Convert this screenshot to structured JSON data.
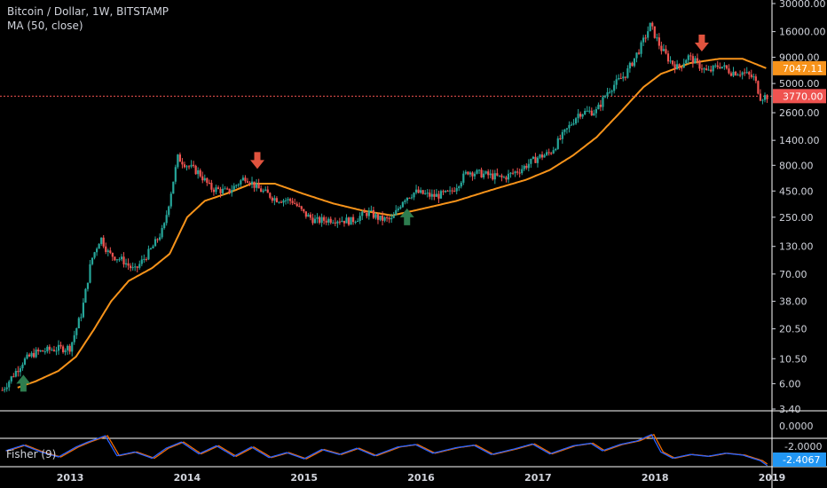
{
  "header": {
    "symbol": "Bitcoin / Dollar, 1W, BITSTAMP",
    "indicator": "MA (50, close)"
  },
  "fisher": {
    "label": "Fisher (9)",
    "value_label": "-2.4067",
    "zero_label": "0.0000",
    "partial_label": "-2.0000"
  },
  "colors": {
    "background": "#000000",
    "up": "#26a69a",
    "down": "#ef5350",
    "ma": "#f7931a",
    "ma_badge": "#f7931a",
    "price_badge": "#ef5350",
    "fisher_line1": "#2962ff",
    "fisher_line2": "#ef6c00",
    "fisher_badge": "#2196f3",
    "buy_arrow": "#2e7d4f",
    "sell_arrow": "#e0533e"
  },
  "chart_data": {
    "type": "candlestick",
    "y_scale": "log",
    "ylim": [
      3.4,
      30000
    ],
    "y_ticks": [
      "30000.00",
      "16000.00",
      "9000.00",
      "5000.00",
      "2600.00",
      "1400.00",
      "800.00",
      "450.00",
      "250.00",
      "130.00",
      "70.00",
      "38.00",
      "20.50",
      "10.50",
      "6.00",
      "3.40"
    ],
    "x_ticks": [
      "2013",
      "2014",
      "2015",
      "2016",
      "2017",
      "2018",
      "2019"
    ],
    "x_tick_dates": [
      2013.0,
      2014.0,
      2015.0,
      2016.0,
      2017.0,
      2018.0,
      2019.0
    ],
    "xlim": [
      2012.4,
      2019.0
    ],
    "ma_label": "7047.11",
    "ma_value": 7047.11,
    "last_price_label": "3770.00",
    "last_price": 3770.0,
    "price_anchors": [
      [
        2012.42,
        5.2
      ],
      [
        2012.6,
        10.0
      ],
      [
        2012.7,
        12.0
      ],
      [
        2012.85,
        13.0
      ],
      [
        2013.0,
        13.5
      ],
      [
        2013.1,
        30.0
      ],
      [
        2013.18,
        95.0
      ],
      [
        2013.26,
        160.0
      ],
      [
        2013.33,
        110.0
      ],
      [
        2013.45,
        95.0
      ],
      [
        2013.55,
        75.0
      ],
      [
        2013.7,
        125.0
      ],
      [
        2013.8,
        195.0
      ],
      [
        2013.92,
        950.0
      ],
      [
        2014.0,
        800.0
      ],
      [
        2014.1,
        680.0
      ],
      [
        2014.2,
        480.0
      ],
      [
        2014.35,
        440.0
      ],
      [
        2014.5,
        620.0
      ],
      [
        2014.6,
        480.0
      ],
      [
        2014.75,
        380.0
      ],
      [
        2014.9,
        360.0
      ],
      [
        2015.0,
        270.0
      ],
      [
        2015.1,
        230.0
      ],
      [
        2015.25,
        240.0
      ],
      [
        2015.4,
        230.0
      ],
      [
        2015.55,
        280.0
      ],
      [
        2015.65,
        240.0
      ],
      [
        2015.75,
        235.0
      ],
      [
        2015.85,
        380.0
      ],
      [
        2015.95,
        440.0
      ],
      [
        2016.1,
        400.0
      ],
      [
        2016.25,
        430.0
      ],
      [
        2016.4,
        700.0
      ],
      [
        2016.55,
        650.0
      ],
      [
        2016.7,
        600.0
      ],
      [
        2016.85,
        730.0
      ],
      [
        2017.0,
        960.0
      ],
      [
        2017.1,
        1050.0
      ],
      [
        2017.25,
        1800.0
      ],
      [
        2017.35,
        2600.0
      ],
      [
        2017.5,
        2700.0
      ],
      [
        2017.6,
        4300.0
      ],
      [
        2017.75,
        6200.0
      ],
      [
        2017.88,
        11500.0
      ],
      [
        2017.96,
        18500.0
      ],
      [
        2018.05,
        11000.0
      ],
      [
        2018.12,
        8500.0
      ],
      [
        2018.2,
        7000.0
      ],
      [
        2018.28,
        9200.0
      ],
      [
        2018.35,
        8000.0
      ],
      [
        2018.45,
        6400.0
      ],
      [
        2018.55,
        7600.0
      ],
      [
        2018.65,
        6500.0
      ],
      [
        2018.75,
        6400.0
      ],
      [
        2018.85,
        5600.0
      ],
      [
        2018.9,
        3700.0
      ],
      [
        2018.96,
        3770.0
      ]
    ],
    "ma_anchors": [
      [
        2012.55,
        5.5
      ],
      [
        2012.7,
        6.3
      ],
      [
        2012.9,
        8.0
      ],
      [
        2013.05,
        11.0
      ],
      [
        2013.2,
        20.0
      ],
      [
        2013.35,
        38.0
      ],
      [
        2013.5,
        60.0
      ],
      [
        2013.7,
        80.0
      ],
      [
        2013.85,
        110.0
      ],
      [
        2014.0,
        250.0
      ],
      [
        2014.15,
        360.0
      ],
      [
        2014.35,
        430.0
      ],
      [
        2014.55,
        530.0
      ],
      [
        2014.75,
        530.0
      ],
      [
        2015.0,
        420.0
      ],
      [
        2015.25,
        340.0
      ],
      [
        2015.5,
        290.0
      ],
      [
        2015.75,
        260.0
      ],
      [
        2016.0,
        300.0
      ],
      [
        2016.3,
        360.0
      ],
      [
        2016.6,
        460.0
      ],
      [
        2016.9,
        580.0
      ],
      [
        2017.1,
        720.0
      ],
      [
        2017.3,
        1000.0
      ],
      [
        2017.5,
        1500.0
      ],
      [
        2017.7,
        2600.0
      ],
      [
        2017.9,
        4600.0
      ],
      [
        2018.05,
        6200.0
      ],
      [
        2018.3,
        7900.0
      ],
      [
        2018.55,
        8700.0
      ],
      [
        2018.75,
        8700.0
      ],
      [
        2018.95,
        7047.11
      ]
    ],
    "signals": [
      {
        "type": "buy",
        "date": 2012.6,
        "price": 6.0
      },
      {
        "type": "sell",
        "date": 2014.6,
        "price": 900.0
      },
      {
        "type": "buy",
        "date": 2015.88,
        "price": 250.0
      },
      {
        "type": "sell",
        "date": 2018.4,
        "price": 12500.0
      }
    ],
    "fisher_anchors": [
      [
        2012.45,
        0.0
      ],
      [
        2012.6,
        0.9
      ],
      [
        2012.75,
        -0.2
      ],
      [
        2012.9,
        -1.0
      ],
      [
        2013.05,
        0.6
      ],
      [
        2013.15,
        1.4
      ],
      [
        2013.3,
        2.4
      ],
      [
        2013.4,
        -0.8
      ],
      [
        2013.55,
        -0.2
      ],
      [
        2013.7,
        -1.2
      ],
      [
        2013.82,
        0.4
      ],
      [
        2013.95,
        1.4
      ],
      [
        2014.1,
        -0.5
      ],
      [
        2014.25,
        0.8
      ],
      [
        2014.4,
        -0.9
      ],
      [
        2014.55,
        0.6
      ],
      [
        2014.7,
        -1.1
      ],
      [
        2014.85,
        -0.3
      ],
      [
        2015.0,
        -1.3
      ],
      [
        2015.15,
        0.2
      ],
      [
        2015.3,
        -0.6
      ],
      [
        2015.45,
        0.4
      ],
      [
        2015.6,
        -0.8
      ],
      [
        2015.8,
        0.6
      ],
      [
        2015.95,
        1.0
      ],
      [
        2016.1,
        -0.4
      ],
      [
        2016.3,
        0.5
      ],
      [
        2016.45,
        0.9
      ],
      [
        2016.6,
        -0.6
      ],
      [
        2016.8,
        0.3
      ],
      [
        2016.95,
        1.1
      ],
      [
        2017.1,
        -0.5
      ],
      [
        2017.3,
        0.8
      ],
      [
        2017.45,
        1.2
      ],
      [
        2017.55,
        0.0
      ],
      [
        2017.7,
        1.0
      ],
      [
        2017.85,
        1.6
      ],
      [
        2017.97,
        2.6
      ],
      [
        2018.05,
        -0.2
      ],
      [
        2018.15,
        -1.2
      ],
      [
        2018.3,
        -0.6
      ],
      [
        2018.45,
        -0.9
      ],
      [
        2018.6,
        -0.4
      ],
      [
        2018.75,
        -0.7
      ],
      [
        2018.9,
        -1.6
      ],
      [
        2018.96,
        -2.4067
      ]
    ]
  }
}
